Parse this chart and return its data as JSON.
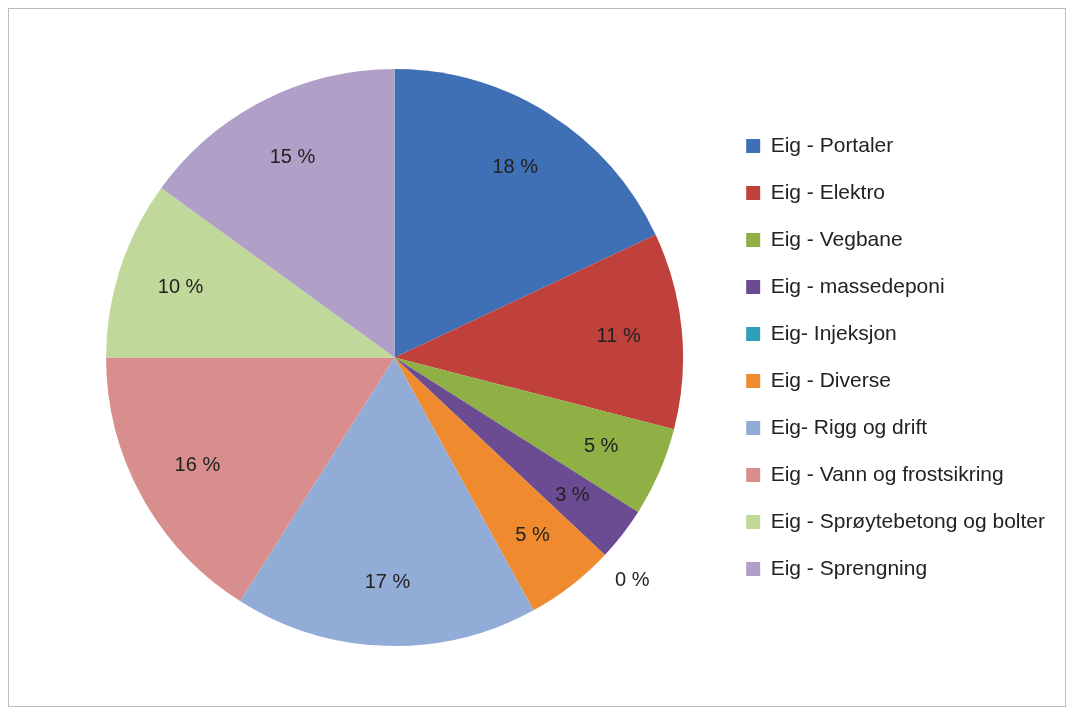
{
  "chart_data": {
    "type": "pie",
    "legend": "right",
    "categories": [
      "Eig - Portaler",
      "Eig - Elektro",
      "Eig - Vegbane",
      "Eig - massedeponi",
      "Eig- Injeksjon",
      "Eig - Diverse",
      "Eig- Rigg og drift",
      "Eig - Vann og frostsikring",
      "Eig - Sprøytebetong og bolter",
      "Eig - Sprengning"
    ],
    "values": [
      18,
      11,
      5,
      3,
      0,
      5,
      17,
      16,
      10,
      15
    ],
    "value_labels": [
      "18 %",
      "11 %",
      "5 %",
      "3 %",
      "0 %",
      "5 %",
      "17 %",
      "16 %",
      "10 %",
      "15 %"
    ],
    "colors": [
      "#3f6fb5",
      "#c0403c",
      "#8fb045",
      "#6b4c93",
      "#2fa0b8",
      "#f08a2e",
      "#92acd8",
      "#d78e8c",
      "#c0d89a",
      "#b0a0c8"
    ]
  }
}
